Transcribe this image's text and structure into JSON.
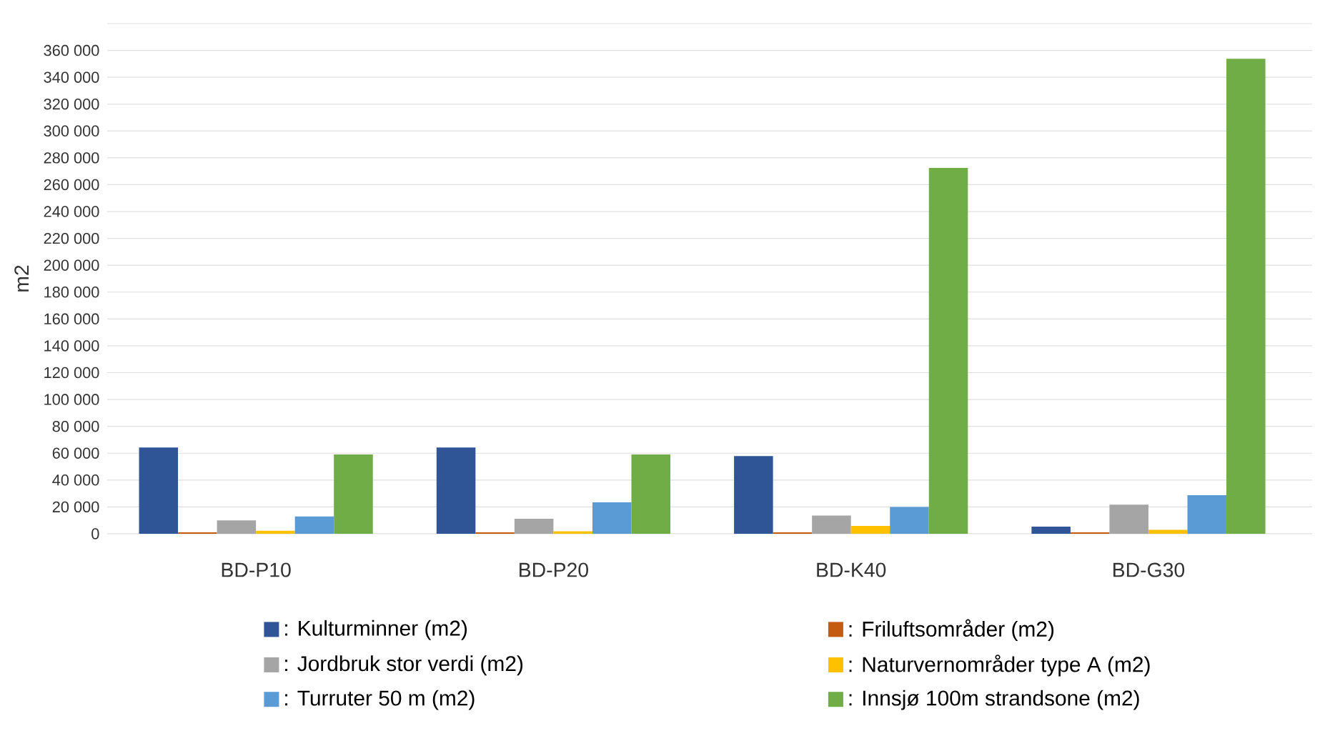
{
  "chart_data": {
    "type": "bar",
    "ylabel": "m2",
    "categories": [
      "BD-P10",
      "BD-P20",
      "BD-K40",
      "BD-G30"
    ],
    "series": [
      {
        "name": ": Kulturminner (m2)",
        "color": "#2f5597",
        "values": [
          64300,
          64300,
          57900,
          5300
        ]
      },
      {
        "name": ": Friluftsområder (m2)",
        "color": "#c55a11",
        "values": [
          1000,
          1000,
          1000,
          1000
        ]
      },
      {
        "name": ": Jordbruk stor verdi (m2)",
        "color": "#a5a5a5",
        "values": [
          9900,
          11100,
          13500,
          21600
        ]
      },
      {
        "name": ": Naturvernområder type A (m2)",
        "color": "#ffc000",
        "values": [
          2300,
          1800,
          5800,
          2900
        ]
      },
      {
        "name": ": Turruter 50 m (m2)",
        "color": "#5b9bd5",
        "values": [
          12900,
          23400,
          19900,
          28700
        ]
      },
      {
        "name": ": Innsjø 100m strandsone (m2)",
        "color": "#70ad47",
        "values": [
          59100,
          59100,
          272500,
          353800
        ]
      }
    ],
    "ylim": [
      0,
      380000
    ],
    "yticks": [
      0,
      {
        "value": 20000,
        "label": "20 000"
      },
      {
        "value": 40000,
        "label": "40 000"
      },
      {
        "value": 60000,
        "label": "60 000"
      },
      {
        "value": 80000,
        "label": "80 000"
      },
      {
        "value": 100000,
        "label": "100 000"
      },
      {
        "value": 120000,
        "label": "120 000"
      },
      {
        "value": 140000,
        "label": "140 000"
      },
      {
        "value": 160000,
        "label": "160 000"
      },
      {
        "value": 180000,
        "label": "180 000"
      },
      {
        "value": 200000,
        "label": "200 000"
      },
      {
        "value": 220000,
        "label": "220 000"
      },
      {
        "value": 240000,
        "label": "240 000"
      },
      {
        "value": 260000,
        "label": "260 000"
      },
      {
        "value": 280000,
        "label": "280 000"
      },
      {
        "value": 300000,
        "label": "300 000"
      },
      {
        "value": 320000,
        "label": "320 000"
      },
      {
        "value": 340000,
        "label": "340 000"
      },
      {
        "value": 360000,
        "label": "360 000"
      },
      {
        "value": 380000,
        "label": null
      }
    ],
    "grid": "y",
    "legend": "bottom"
  }
}
